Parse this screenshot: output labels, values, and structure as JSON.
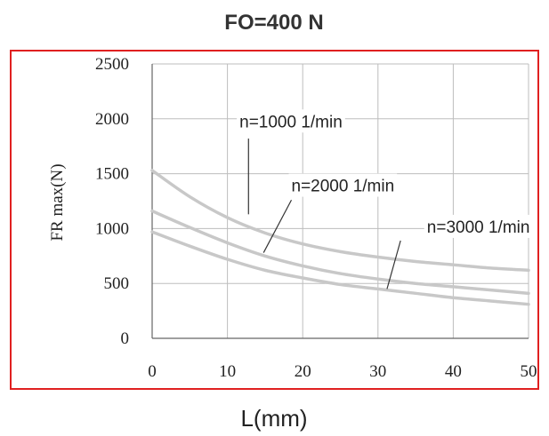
{
  "chart_data": {
    "type": "line",
    "title": "FO=400 N",
    "xlabel": "L(mm)",
    "ylabel": "FR max(N)",
    "xlim": [
      0,
      50
    ],
    "ylim": [
      0,
      2500
    ],
    "xticks": [
      0,
      10,
      20,
      30,
      40,
      50
    ],
    "yticks": [
      0,
      500,
      1000,
      1500,
      2000,
      2500
    ],
    "grid": true,
    "frame_color": "#e02020",
    "curve_color": "#c8c8c8",
    "x": [
      0,
      5,
      10,
      15,
      20,
      25,
      30,
      35,
      40,
      45,
      50
    ],
    "series": [
      {
        "name": "n=1000 1/min",
        "values": [
          1530,
          1290,
          1100,
          960,
          860,
          790,
          740,
          700,
          670,
          640,
          620
        ]
      },
      {
        "name": "n=2000 1/min",
        "values": [
          1160,
          1010,
          870,
          750,
          660,
          590,
          540,
          500,
          470,
          440,
          410
        ]
      },
      {
        "name": "n=3000 1/min",
        "values": [
          970,
          840,
          720,
          620,
          550,
          490,
          450,
          410,
          370,
          340,
          310
        ]
      }
    ],
    "annotations": [
      {
        "text": "n=1000 1/min",
        "series": 0,
        "label_x": 11.6,
        "label_y": 1980,
        "pointer": [
          [
            12.8,
            1820
          ],
          [
            12.8,
            1130
          ]
        ]
      },
      {
        "text": "n=2000 1/min",
        "series": 1,
        "label_x": 18.5,
        "label_y": 1395,
        "pointer": [
          [
            18.5,
            1260
          ],
          [
            14.8,
            780
          ]
        ]
      },
      {
        "text": "n=3000 1/min",
        "series": 2,
        "label_x": 36.5,
        "label_y": 1020,
        "pointer": [
          [
            33.0,
            890
          ],
          [
            31.2,
            450
          ]
        ]
      }
    ]
  }
}
